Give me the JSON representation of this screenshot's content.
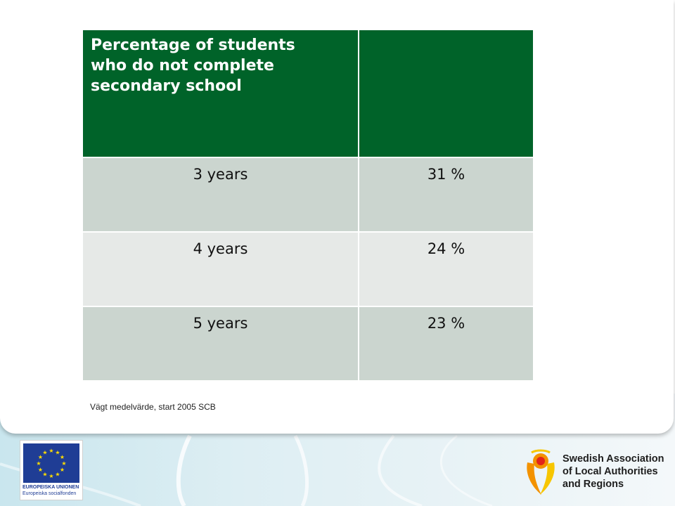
{
  "table": {
    "header": {
      "title": "Percentage of students who do not complete secondary school",
      "value": ""
    },
    "rows": [
      {
        "label": "3 years",
        "value": "31 %"
      },
      {
        "label": "4 years",
        "value": "24 %"
      },
      {
        "label": "5 years",
        "value": "23 %"
      }
    ]
  },
  "source_note": "Vägt medelvärde, start 2005 SCB",
  "eu_logo": {
    "line1": "EUROPEISKA UNIONEN",
    "line2": "Europeiska socialfonden",
    "icon": "eu-flag-icon"
  },
  "org_logo": {
    "lines": [
      "Swedish Association",
      "of Local Authorities",
      "and Regions"
    ],
    "icon": "skl-figure-icon"
  },
  "colors": {
    "header_green": "#006329",
    "row_dark": "#cbd5cf",
    "row_light": "#e6e9e7",
    "eu_blue": "#1f3d95",
    "eu_star": "#ffdd00",
    "logo_orange": "#f39200",
    "logo_red": "#e2231a",
    "logo_yellow": "#f7c600"
  }
}
